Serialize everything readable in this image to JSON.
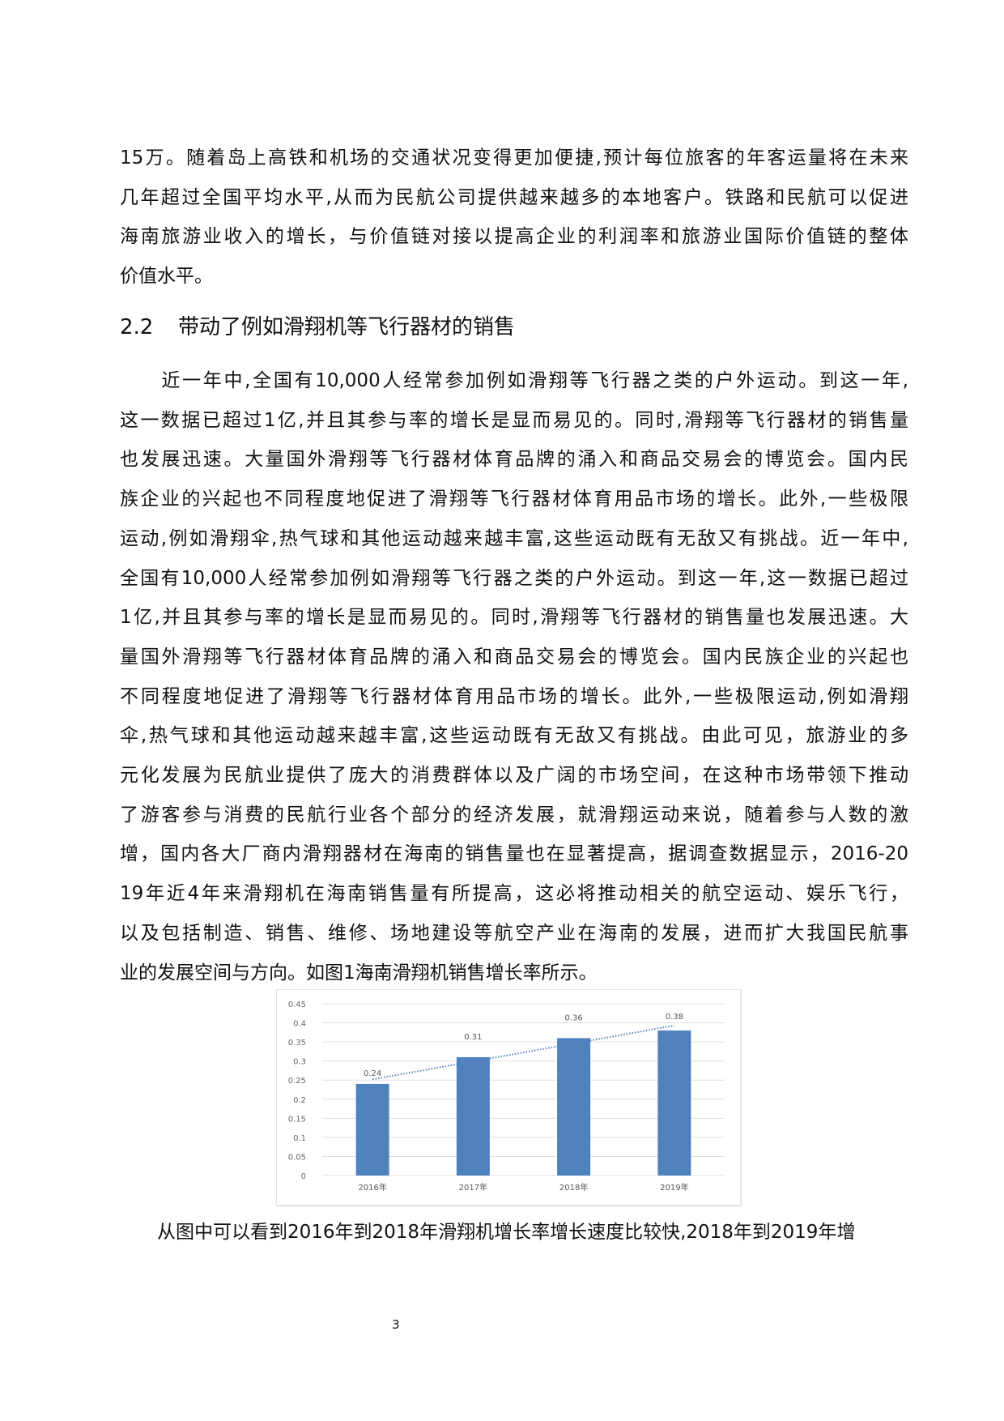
{
  "para1_lines": [
    "15万。随着岛上高铁和机场的交通状况变得更加便捷,预计每位旅客的年客运量将在未来",
    "几年超过全国平均水平,从而为民航公司提供越来越多的本地客户。铁路和民航可以促进",
    "海南旅游业收入的增长，与价值链对接以提高企业的利润率和旅游业国际价值链的整体",
    "价值水平。"
  ],
  "heading": {
    "number": "2.2",
    "title": "带动了例如滑翔机等飞行器材的销售"
  },
  "para2_lines": [
    "　　近一年中,全国有10,000人经常参加例如滑翔等飞行器之类的户外运动。到这一年,",
    "这一数据已超过1亿,并且其参与率的增长是显而易见的。同时,滑翔等飞行器材的销售量",
    "也发展迅速。大量国外滑翔等飞行器材体育品牌的涌入和商品交易会的博览会。国内民",
    "族企业的兴起也不同程度地促进了滑翔等飞行器材体育用品市场的增长。此外,一些极限",
    "运动,例如滑翔伞,热气球和其他运动越来越丰富,这些运动既有无敌又有挑战。近一年中,",
    "全国有10,000人经常参加例如滑翔等飞行器之类的户外运动。到这一年,这一数据已超过",
    "1亿,并且其参与率的增长是显而易见的。同时,滑翔等飞行器材的销售量也发展迅速。大",
    "量国外滑翔等飞行器材体育品牌的涌入和商品交易会的博览会。国内民族企业的兴起也",
    "不同程度地促进了滑翔等飞行器材体育用品市场的增长。此外,一些极限运动,例如滑翔",
    "伞,热气球和其他运动越来越丰富,这些运动既有无敌又有挑战。由此可见，旅游业的多",
    "元化发展为民航业提供了庞大的消费群体以及广阔的市场空间，在这种市场带领下推动",
    "了游客参与消费的民航行业各个部分的经济发展，就滑翔运动来说，随着参与人数的激",
    "增，国内各大厂商内滑翔器材在海南的销售量也在显著提高，据调查数据显示，2016-20",
    "19年近4年来滑翔机在海南销售量有所提高，这必将推动相关的航空运动、娱乐飞行，",
    "以及包括制造、销售、维修、场地建设等航空产业在海南的发展，进而扩大我国民航事",
    "业的发展空间与方向。如图1海南滑翔机销售增长率所示。"
  ],
  "para3_lines": [
    "　　从图中可以看到2016年到2018年滑翔机增长率增长速度比较快,2018年到2019年增"
  ],
  "page_number": "3",
  "chart_data": {
    "type": "bar",
    "categories": [
      "2016年",
      "2017年",
      "2018年",
      "2019年"
    ],
    "values": [
      0.24,
      0.31,
      0.36,
      0.38
    ],
    "data_labels": [
      "0.24",
      "0.31",
      "0.36",
      "0.38"
    ],
    "ylim": [
      0,
      0.45
    ],
    "yticks": [
      "0",
      "0.05",
      "0.1",
      "0.15",
      "0.2",
      "0.25",
      "0.3",
      "0.35",
      "0.4",
      "0.45"
    ],
    "grid": true,
    "trendline": "linear, dotted",
    "colors": {
      "bar": "#4f81bd",
      "trend": "#4f81bd",
      "grid": "#e0e0e0"
    }
  }
}
